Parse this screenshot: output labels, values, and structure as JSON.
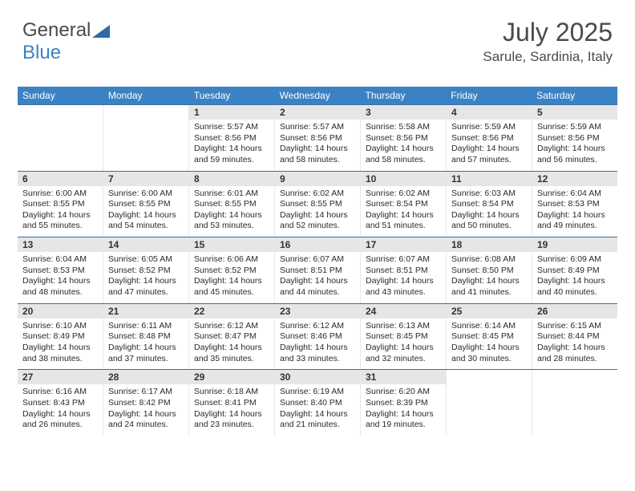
{
  "logo": {
    "part1": "General",
    "part2": "Blue"
  },
  "header": {
    "title": "July 2025",
    "location": "Sarule, Sardinia, Italy"
  },
  "colors": {
    "header_bg": "#3b82c4",
    "header_fg": "#ffffff",
    "daynum_bg": "#e6e6e6",
    "week_border": "#3b6fa0"
  },
  "day_headers": [
    "Sunday",
    "Monday",
    "Tuesday",
    "Wednesday",
    "Thursday",
    "Friday",
    "Saturday"
  ],
  "weeks": [
    [
      {
        "n": "",
        "empty": true
      },
      {
        "n": "",
        "empty": true
      },
      {
        "n": "1",
        "sr": "Sunrise: 5:57 AM",
        "ss": "Sunset: 8:56 PM",
        "d1": "Daylight: 14 hours",
        "d2": "and 59 minutes."
      },
      {
        "n": "2",
        "sr": "Sunrise: 5:57 AM",
        "ss": "Sunset: 8:56 PM",
        "d1": "Daylight: 14 hours",
        "d2": "and 58 minutes."
      },
      {
        "n": "3",
        "sr": "Sunrise: 5:58 AM",
        "ss": "Sunset: 8:56 PM",
        "d1": "Daylight: 14 hours",
        "d2": "and 58 minutes."
      },
      {
        "n": "4",
        "sr": "Sunrise: 5:59 AM",
        "ss": "Sunset: 8:56 PM",
        "d1": "Daylight: 14 hours",
        "d2": "and 57 minutes."
      },
      {
        "n": "5",
        "sr": "Sunrise: 5:59 AM",
        "ss": "Sunset: 8:56 PM",
        "d1": "Daylight: 14 hours",
        "d2": "and 56 minutes."
      }
    ],
    [
      {
        "n": "6",
        "sr": "Sunrise: 6:00 AM",
        "ss": "Sunset: 8:55 PM",
        "d1": "Daylight: 14 hours",
        "d2": "and 55 minutes."
      },
      {
        "n": "7",
        "sr": "Sunrise: 6:00 AM",
        "ss": "Sunset: 8:55 PM",
        "d1": "Daylight: 14 hours",
        "d2": "and 54 minutes."
      },
      {
        "n": "8",
        "sr": "Sunrise: 6:01 AM",
        "ss": "Sunset: 8:55 PM",
        "d1": "Daylight: 14 hours",
        "d2": "and 53 minutes."
      },
      {
        "n": "9",
        "sr": "Sunrise: 6:02 AM",
        "ss": "Sunset: 8:55 PM",
        "d1": "Daylight: 14 hours",
        "d2": "and 52 minutes."
      },
      {
        "n": "10",
        "sr": "Sunrise: 6:02 AM",
        "ss": "Sunset: 8:54 PM",
        "d1": "Daylight: 14 hours",
        "d2": "and 51 minutes."
      },
      {
        "n": "11",
        "sr": "Sunrise: 6:03 AM",
        "ss": "Sunset: 8:54 PM",
        "d1": "Daylight: 14 hours",
        "d2": "and 50 minutes."
      },
      {
        "n": "12",
        "sr": "Sunrise: 6:04 AM",
        "ss": "Sunset: 8:53 PM",
        "d1": "Daylight: 14 hours",
        "d2": "and 49 minutes."
      }
    ],
    [
      {
        "n": "13",
        "sr": "Sunrise: 6:04 AM",
        "ss": "Sunset: 8:53 PM",
        "d1": "Daylight: 14 hours",
        "d2": "and 48 minutes."
      },
      {
        "n": "14",
        "sr": "Sunrise: 6:05 AM",
        "ss": "Sunset: 8:52 PM",
        "d1": "Daylight: 14 hours",
        "d2": "and 47 minutes."
      },
      {
        "n": "15",
        "sr": "Sunrise: 6:06 AM",
        "ss": "Sunset: 8:52 PM",
        "d1": "Daylight: 14 hours",
        "d2": "and 45 minutes."
      },
      {
        "n": "16",
        "sr": "Sunrise: 6:07 AM",
        "ss": "Sunset: 8:51 PM",
        "d1": "Daylight: 14 hours",
        "d2": "and 44 minutes."
      },
      {
        "n": "17",
        "sr": "Sunrise: 6:07 AM",
        "ss": "Sunset: 8:51 PM",
        "d1": "Daylight: 14 hours",
        "d2": "and 43 minutes."
      },
      {
        "n": "18",
        "sr": "Sunrise: 6:08 AM",
        "ss": "Sunset: 8:50 PM",
        "d1": "Daylight: 14 hours",
        "d2": "and 41 minutes."
      },
      {
        "n": "19",
        "sr": "Sunrise: 6:09 AM",
        "ss": "Sunset: 8:49 PM",
        "d1": "Daylight: 14 hours",
        "d2": "and 40 minutes."
      }
    ],
    [
      {
        "n": "20",
        "sr": "Sunrise: 6:10 AM",
        "ss": "Sunset: 8:49 PM",
        "d1": "Daylight: 14 hours",
        "d2": "and 38 minutes."
      },
      {
        "n": "21",
        "sr": "Sunrise: 6:11 AM",
        "ss": "Sunset: 8:48 PM",
        "d1": "Daylight: 14 hours",
        "d2": "and 37 minutes."
      },
      {
        "n": "22",
        "sr": "Sunrise: 6:12 AM",
        "ss": "Sunset: 8:47 PM",
        "d1": "Daylight: 14 hours",
        "d2": "and 35 minutes."
      },
      {
        "n": "23",
        "sr": "Sunrise: 6:12 AM",
        "ss": "Sunset: 8:46 PM",
        "d1": "Daylight: 14 hours",
        "d2": "and 33 minutes."
      },
      {
        "n": "24",
        "sr": "Sunrise: 6:13 AM",
        "ss": "Sunset: 8:45 PM",
        "d1": "Daylight: 14 hours",
        "d2": "and 32 minutes."
      },
      {
        "n": "25",
        "sr": "Sunrise: 6:14 AM",
        "ss": "Sunset: 8:45 PM",
        "d1": "Daylight: 14 hours",
        "d2": "and 30 minutes."
      },
      {
        "n": "26",
        "sr": "Sunrise: 6:15 AM",
        "ss": "Sunset: 8:44 PM",
        "d1": "Daylight: 14 hours",
        "d2": "and 28 minutes."
      }
    ],
    [
      {
        "n": "27",
        "sr": "Sunrise: 6:16 AM",
        "ss": "Sunset: 8:43 PM",
        "d1": "Daylight: 14 hours",
        "d2": "and 26 minutes."
      },
      {
        "n": "28",
        "sr": "Sunrise: 6:17 AM",
        "ss": "Sunset: 8:42 PM",
        "d1": "Daylight: 14 hours",
        "d2": "and 24 minutes."
      },
      {
        "n": "29",
        "sr": "Sunrise: 6:18 AM",
        "ss": "Sunset: 8:41 PM",
        "d1": "Daylight: 14 hours",
        "d2": "and 23 minutes."
      },
      {
        "n": "30",
        "sr": "Sunrise: 6:19 AM",
        "ss": "Sunset: 8:40 PM",
        "d1": "Daylight: 14 hours",
        "d2": "and 21 minutes."
      },
      {
        "n": "31",
        "sr": "Sunrise: 6:20 AM",
        "ss": "Sunset: 8:39 PM",
        "d1": "Daylight: 14 hours",
        "d2": "and 19 minutes."
      },
      {
        "n": "",
        "empty": true
      },
      {
        "n": "",
        "empty": true
      }
    ]
  ]
}
